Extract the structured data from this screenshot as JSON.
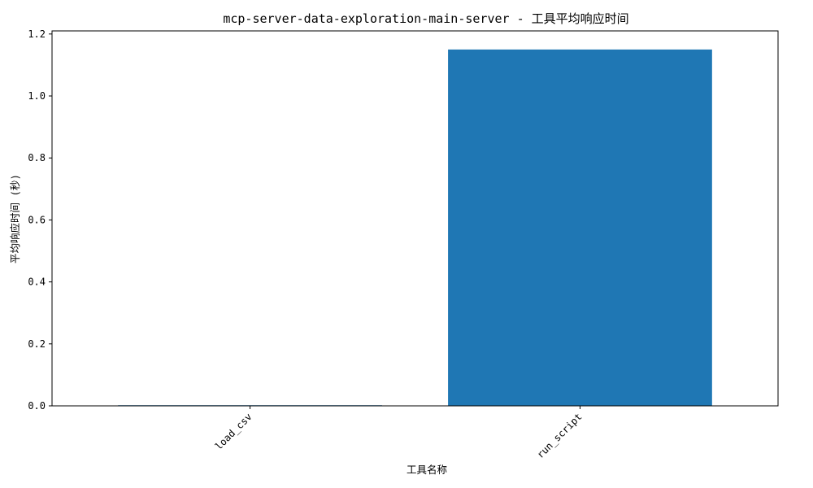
{
  "chart_data": {
    "type": "bar",
    "title": "mcp-server-data-exploration-main-server - 工具平均响应时间",
    "xlabel": "工具名称",
    "ylabel": "平均响应时间 (秒)",
    "categories": [
      "load_csv",
      "run_script"
    ],
    "values": [
      0.002,
      1.15
    ],
    "ylim": [
      0,
      1.21
    ],
    "yticks": [
      0.0,
      0.2,
      0.4,
      0.6,
      0.8,
      1.0,
      1.2
    ],
    "ytick_labels": [
      "0.0",
      "0.2",
      "0.4",
      "0.6",
      "0.8",
      "1.0",
      "1.2"
    ],
    "grid": false,
    "bar_color": "#1f77b4",
    "x_tick_rotation_deg": 45
  }
}
